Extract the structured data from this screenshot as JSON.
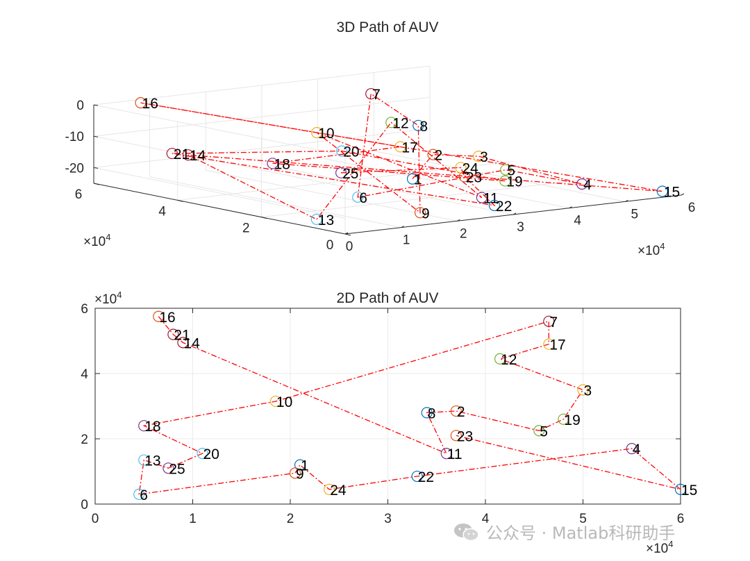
{
  "watermark": "公众号 · Matlab科研助手",
  "chart_data": [
    {
      "type": "scatter3d-path",
      "title": "3D Path of AUV",
      "xlabel": "",
      "ylabel": "",
      "zlabel": "",
      "xlim": [
        0,
        60000
      ],
      "ylim": [
        0,
        60000
      ],
      "zlim": [
        -25,
        0
      ],
      "x_ticks": [
        "0",
        "1",
        "2",
        "3",
        "4",
        "5",
        "6"
      ],
      "y_ticks": [
        "0",
        "2",
        "4",
        "6"
      ],
      "z_ticks": [
        "0",
        "-10",
        "-20"
      ],
      "x_exponent": "×10",
      "y_exponent": "×10",
      "exponent_power": "4",
      "grid": true,
      "path_style": "red dash-dot",
      "points": [
        {
          "label": "1",
          "x": 21000,
          "y": 12000,
          "z": -15,
          "color": "#0072BD"
        },
        {
          "label": "2",
          "x": 37000,
          "y": 28500,
          "z": -15,
          "color": "#D95319"
        },
        {
          "label": "3",
          "x": 50000,
          "y": 35000,
          "z": -20,
          "color": "#EDB120"
        },
        {
          "label": "4",
          "x": 55000,
          "y": 17000,
          "z": -25,
          "color": "#7E2F8E"
        },
        {
          "label": "5",
          "x": 45500,
          "y": 22500,
          "z": -20,
          "color": "#77AC30"
        },
        {
          "label": "6",
          "x": 4500,
          "y": 3000,
          "z": -15,
          "color": "#4DBEEE"
        },
        {
          "label": "7",
          "x": 46500,
          "y": 56000,
          "z": -5,
          "color": "#A2142F"
        },
        {
          "label": "8",
          "x": 34000,
          "y": 28000,
          "z": -5,
          "color": "#0072BD"
        },
        {
          "label": "9",
          "x": 20500,
          "y": 9500,
          "z": -25,
          "color": "#D95319"
        },
        {
          "label": "10",
          "x": 18500,
          "y": 31500,
          "z": -5,
          "color": "#EDB120"
        },
        {
          "label": "11",
          "x": 36000,
          "y": 15500,
          "z": -25,
          "color": "#7E2F8E"
        },
        {
          "label": "12",
          "x": 41500,
          "y": 44500,
          "z": -10,
          "color": "#77AC30"
        },
        {
          "label": "13",
          "x": 5000,
          "y": 13500,
          "z": -25,
          "color": "#4DBEEE"
        },
        {
          "label": "14",
          "x": 9000,
          "y": 49500,
          "z": -15,
          "color": "#A2142F"
        },
        {
          "label": "15",
          "x": 60000,
          "y": 4500,
          "z": -25,
          "color": "#0072BD"
        },
        {
          "label": "16",
          "x": 6500,
          "y": 57500,
          "z": 0,
          "color": "#D95319"
        },
        {
          "label": "17",
          "x": 46500,
          "y": 49000,
          "z": -20,
          "color": "#EDB120"
        },
        {
          "label": "18",
          "x": 5000,
          "y": 24000,
          "z": -10,
          "color": "#7E2F8E"
        },
        {
          "label": "19",
          "x": 48000,
          "y": 26000,
          "z": -25,
          "color": "#77AC30"
        },
        {
          "label": "20",
          "x": 11000,
          "y": 15500,
          "z": -5,
          "color": "#4DBEEE"
        },
        {
          "label": "21",
          "x": 8000,
          "y": 52000,
          "z": -15,
          "color": "#A2142F"
        },
        {
          "label": "22",
          "x": 33000,
          "y": 8500,
          "z": -25,
          "color": "#0072BD"
        },
        {
          "label": "23",
          "x": 37000,
          "y": 21000,
          "z": -20,
          "color": "#D95319"
        },
        {
          "label": "24",
          "x": 24000,
          "y": 4500,
          "z": -10,
          "color": "#EDB120"
        },
        {
          "label": "25",
          "x": 7500,
          "y": 11000,
          "z": -10,
          "color": "#7E2F8E"
        }
      ]
    },
    {
      "type": "scatter-path",
      "title": "2D Path of AUV",
      "xlabel": "",
      "ylabel": "",
      "xlim": [
        0,
        60000
      ],
      "ylim": [
        0,
        60000
      ],
      "x_ticks": [
        "0",
        "1",
        "2",
        "3",
        "4",
        "5",
        "6"
      ],
      "y_ticks": [
        "0",
        "2",
        "4",
        "6"
      ],
      "x_exponent": "×10",
      "y_exponent": "×10",
      "exponent_power": "4",
      "grid": true,
      "path_order": [
        "16",
        "21",
        "14",
        "11",
        "8",
        "2",
        "5",
        "19",
        "3",
        "12",
        "17",
        "7",
        "10",
        "18",
        "20",
        "25",
        "13",
        "6",
        "9",
        "1",
        "24",
        "22",
        "4",
        "15",
        "23"
      ]
    }
  ]
}
